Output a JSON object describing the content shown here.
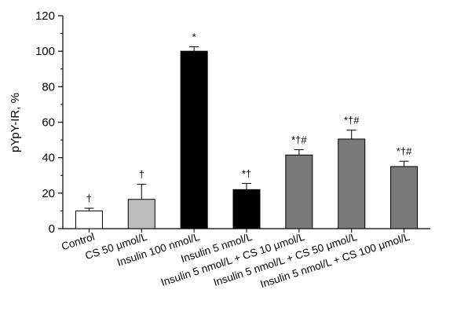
{
  "chart_data": {
    "type": "bar",
    "ylabel": "pYpY-IR, %",
    "ylim": [
      0,
      120
    ],
    "yticks": [
      0,
      20,
      40,
      60,
      80,
      100,
      120
    ],
    "categories": [
      "Control",
      "CS 50 μmol/L",
      "Insulin 100 nmol/L",
      "Insulin 5 nmol/L",
      "Insulin 5 nmol/L + CS 10 μmol/L",
      "Insulin 5 nmol/L + CS 50 μmol/L",
      "Insulin 5 nmol/L + CS 100 μmol/L"
    ],
    "values": [
      10,
      16.5,
      100,
      22,
      41.5,
      50.5,
      35
    ],
    "errors": [
      1.5,
      8.5,
      2.5,
      3.5,
      3,
      5,
      3
    ],
    "annotations": [
      "†",
      "†",
      "*",
      "*†",
      "*†#",
      "*†#",
      "*†#"
    ],
    "colors": [
      "#ffffff",
      "#bdbdbd",
      "#000000",
      "#000000",
      "#7a7a7a",
      "#7a7a7a",
      "#7a7a7a"
    ],
    "grid": false,
    "legend": "none"
  }
}
